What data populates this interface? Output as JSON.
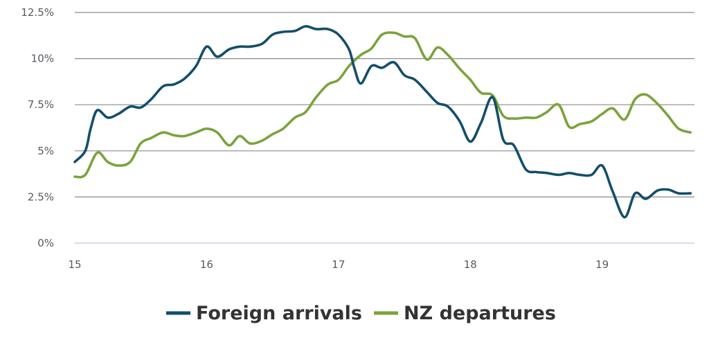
{
  "chart_data": {
    "type": "line",
    "title": "",
    "xlabel": "",
    "ylabel": "",
    "xlim": [
      15,
      19.7
    ],
    "ylim": [
      0,
      12.5
    ],
    "x_ticks": [
      {
        "value": 15,
        "label": "15"
      },
      {
        "value": 16,
        "label": "16"
      },
      {
        "value": 17,
        "label": "17"
      },
      {
        "value": 18,
        "label": "18"
      },
      {
        "value": 19,
        "label": "19"
      }
    ],
    "y_ticks": [
      {
        "value": 0,
        "label": "0%"
      },
      {
        "value": 2.5,
        "label": "2.5%"
      },
      {
        "value": 5,
        "label": "5%"
      },
      {
        "value": 7.5,
        "label": "7.5%"
      },
      {
        "value": 10,
        "label": "10%"
      },
      {
        "value": 12.5,
        "label": "12.5%"
      }
    ],
    "grid": true,
    "legend_position": "bottom-center",
    "series": [
      {
        "name": "Foreign arrivals",
        "color": "#134e6b",
        "points": [
          [
            15.0,
            4.4
          ],
          [
            15.08,
            5.0
          ],
          [
            15.12,
            6.2
          ],
          [
            15.17,
            7.2
          ],
          [
            15.25,
            6.8
          ],
          [
            15.33,
            7.0
          ],
          [
            15.42,
            7.4
          ],
          [
            15.5,
            7.35
          ],
          [
            15.58,
            7.8
          ],
          [
            15.67,
            8.5
          ],
          [
            15.75,
            8.6
          ],
          [
            15.83,
            8.9
          ],
          [
            15.92,
            9.6
          ],
          [
            16.0,
            10.65
          ],
          [
            16.08,
            10.1
          ],
          [
            16.17,
            10.5
          ],
          [
            16.25,
            10.65
          ],
          [
            16.33,
            10.65
          ],
          [
            16.42,
            10.8
          ],
          [
            16.5,
            11.3
          ],
          [
            16.58,
            11.45
          ],
          [
            16.67,
            11.5
          ],
          [
            16.75,
            11.75
          ],
          [
            16.83,
            11.6
          ],
          [
            16.92,
            11.6
          ],
          [
            17.0,
            11.3
          ],
          [
            17.08,
            10.5
          ],
          [
            17.12,
            9.5
          ],
          [
            17.17,
            8.65
          ],
          [
            17.25,
            9.6
          ],
          [
            17.33,
            9.5
          ],
          [
            17.42,
            9.8
          ],
          [
            17.5,
            9.1
          ],
          [
            17.58,
            8.85
          ],
          [
            17.67,
            8.2
          ],
          [
            17.75,
            7.6
          ],
          [
            17.83,
            7.4
          ],
          [
            17.92,
            6.6
          ],
          [
            18.0,
            5.5
          ],
          [
            18.08,
            6.5
          ],
          [
            18.17,
            7.9
          ],
          [
            18.25,
            5.6
          ],
          [
            18.33,
            5.3
          ],
          [
            18.42,
            4.0
          ],
          [
            18.5,
            3.85
          ],
          [
            18.58,
            3.8
          ],
          [
            18.67,
            3.7
          ],
          [
            18.75,
            3.8
          ],
          [
            18.83,
            3.7
          ],
          [
            18.92,
            3.7
          ],
          [
            19.0,
            4.2
          ],
          [
            19.08,
            2.8
          ],
          [
            19.17,
            1.4
          ],
          [
            19.25,
            2.7
          ],
          [
            19.33,
            2.4
          ],
          [
            19.42,
            2.85
          ],
          [
            19.5,
            2.9
          ],
          [
            19.58,
            2.7
          ],
          [
            19.67,
            2.7
          ]
        ]
      },
      {
        "name": "NZ departures",
        "color": "#7aa33b",
        "points": [
          [
            15.0,
            3.6
          ],
          [
            15.08,
            3.7
          ],
          [
            15.17,
            4.9
          ],
          [
            15.25,
            4.4
          ],
          [
            15.33,
            4.2
          ],
          [
            15.42,
            4.4
          ],
          [
            15.5,
            5.4
          ],
          [
            15.58,
            5.7
          ],
          [
            15.67,
            6.0
          ],
          [
            15.75,
            5.85
          ],
          [
            15.83,
            5.8
          ],
          [
            15.92,
            6.0
          ],
          [
            16.0,
            6.2
          ],
          [
            16.08,
            6.0
          ],
          [
            16.17,
            5.3
          ],
          [
            16.25,
            5.8
          ],
          [
            16.33,
            5.4
          ],
          [
            16.42,
            5.55
          ],
          [
            16.5,
            5.9
          ],
          [
            16.58,
            6.2
          ],
          [
            16.67,
            6.8
          ],
          [
            16.75,
            7.1
          ],
          [
            16.83,
            7.9
          ],
          [
            16.92,
            8.6
          ],
          [
            17.0,
            8.85
          ],
          [
            17.08,
            9.6
          ],
          [
            17.17,
            10.2
          ],
          [
            17.25,
            10.55
          ],
          [
            17.33,
            11.3
          ],
          [
            17.42,
            11.4
          ],
          [
            17.5,
            11.2
          ],
          [
            17.58,
            11.1
          ],
          [
            17.67,
            9.95
          ],
          [
            17.75,
            10.6
          ],
          [
            17.83,
            10.2
          ],
          [
            17.92,
            9.45
          ],
          [
            18.0,
            8.85
          ],
          [
            18.08,
            8.15
          ],
          [
            18.17,
            8.0
          ],
          [
            18.25,
            6.9
          ],
          [
            18.33,
            6.75
          ],
          [
            18.42,
            6.8
          ],
          [
            18.5,
            6.8
          ],
          [
            18.58,
            7.1
          ],
          [
            18.67,
            7.5
          ],
          [
            18.75,
            6.3
          ],
          [
            18.83,
            6.45
          ],
          [
            18.92,
            6.6
          ],
          [
            19.0,
            7.0
          ],
          [
            19.08,
            7.3
          ],
          [
            19.17,
            6.7
          ],
          [
            19.25,
            7.8
          ],
          [
            19.33,
            8.05
          ],
          [
            19.42,
            7.55
          ],
          [
            19.5,
            6.9
          ],
          [
            19.58,
            6.2
          ],
          [
            19.67,
            6.0
          ]
        ]
      }
    ]
  }
}
